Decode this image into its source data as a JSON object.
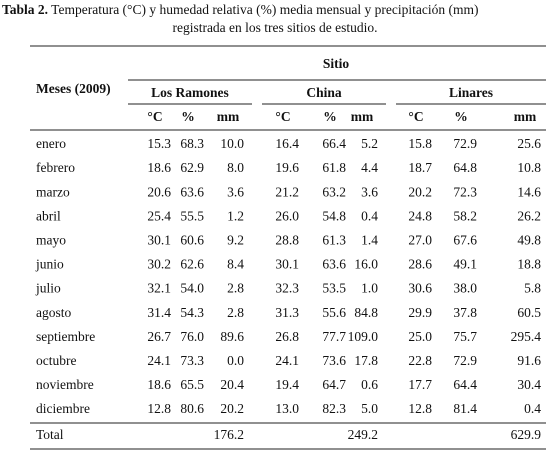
{
  "caption": {
    "label": "Tabla 2.",
    "line1": "Temperatura (°C) y humedad relativa (%) media mensual y precipitación (mm)",
    "line2": "registrada en los tres sitios de estudio."
  },
  "table": {
    "row_header": "Meses (2009)",
    "group_header": "Sitio",
    "groups": [
      "Los Ramones",
      "China",
      "Linares"
    ],
    "units": [
      "°C",
      "%",
      "mm"
    ],
    "rows": [
      [
        "enero",
        "15.3",
        "68.3",
        "10.0",
        "16.4",
        "66.4",
        "5.2",
        "15.8",
        "72.9",
        "25.6"
      ],
      [
        "febrero",
        "18.6",
        "62.9",
        "8.0",
        "19.6",
        "61.8",
        "4.4",
        "18.7",
        "64.8",
        "10.8"
      ],
      [
        "marzo",
        "20.6",
        "63.6",
        "3.6",
        "21.2",
        "63.2",
        "3.6",
        "20.2",
        "72.3",
        "14.6"
      ],
      [
        "abril",
        "25.4",
        "55.5",
        "1.2",
        "26.0",
        "54.8",
        "0.4",
        "24.8",
        "58.2",
        "26.2"
      ],
      [
        "mayo",
        "30.1",
        "60.6",
        "9.2",
        "28.8",
        "61.3",
        "1.4",
        "27.0",
        "67.6",
        "49.8"
      ],
      [
        "junio",
        "30.2",
        "62.6",
        "8.4",
        "30.1",
        "63.6",
        "16.0",
        "28.6",
        "49.1",
        "18.8"
      ],
      [
        "julio",
        "32.1",
        "54.0",
        "2.8",
        "32.3",
        "53.5",
        "1.0",
        "30.6",
        "38.0",
        "5.8"
      ],
      [
        "agosto",
        "31.4",
        "54.3",
        "2.8",
        "31.3",
        "55.6",
        "84.8",
        "29.9",
        "37.8",
        "60.5"
      ],
      [
        "septiembre",
        "26.7",
        "76.0",
        "89.6",
        "26.8",
        "77.7",
        "109.0",
        "25.0",
        "75.7",
        "295.4"
      ],
      [
        "octubre",
        "24.1",
        "73.3",
        "0.0",
        "24.1",
        "73.6",
        "17.8",
        "22.8",
        "72.9",
        "91.6"
      ],
      [
        "noviembre",
        "18.6",
        "65.5",
        "20.4",
        "19.4",
        "64.7",
        "0.6",
        "17.7",
        "64.4",
        "30.4"
      ],
      [
        "diciembre",
        "12.8",
        "80.6",
        "20.2",
        "13.0",
        "82.3",
        "5.0",
        "12.8",
        "81.4",
        "0.4"
      ]
    ],
    "total": {
      "label": "Total",
      "values": [
        "176.2",
        "249.2",
        "629.9"
      ]
    }
  }
}
